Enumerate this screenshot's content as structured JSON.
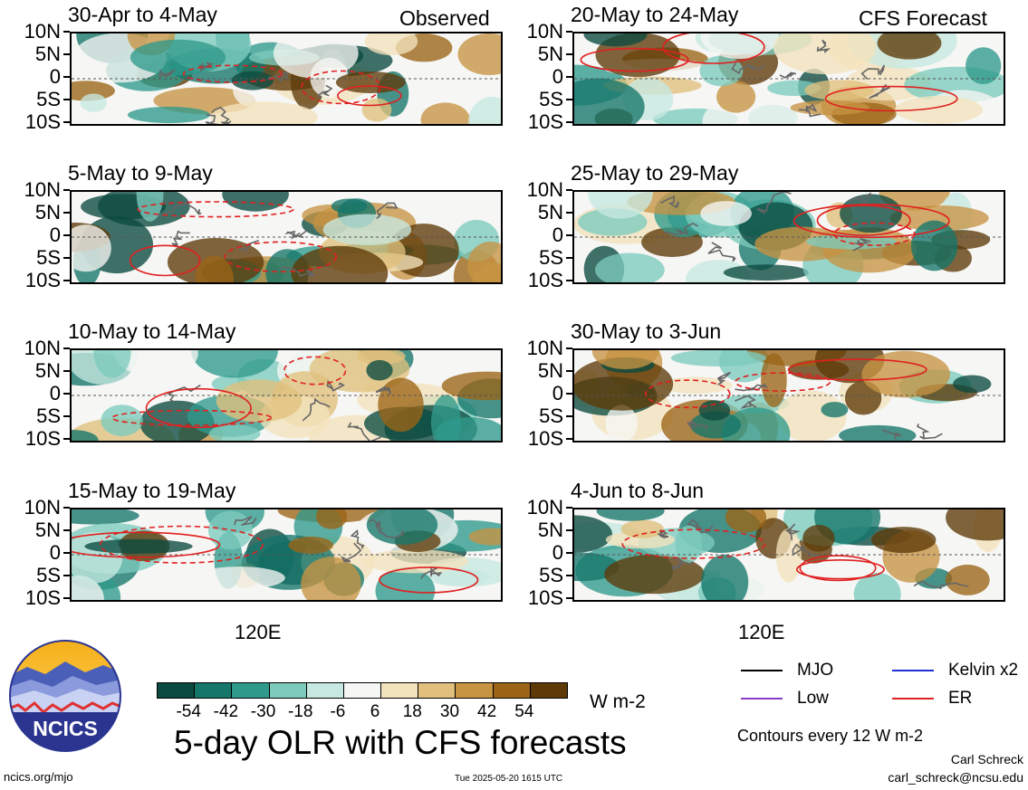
{
  "header": {
    "observed_label": "Observed",
    "forecast_label": "CFS Forecast"
  },
  "latitude_labels": [
    "10N",
    "5N",
    "0",
    "5S",
    "10S"
  ],
  "longitude_label": "120E",
  "panels_observed": [
    {
      "title": "30-Apr to 4-May"
    },
    {
      "title": "5-May to 9-May"
    },
    {
      "title": "10-May to 14-May"
    },
    {
      "title": "15-May to 19-May"
    }
  ],
  "panels_forecast": [
    {
      "title": "20-May to 24-May"
    },
    {
      "title": "25-May to 29-May"
    },
    {
      "title": "30-May to 3-Jun"
    },
    {
      "title": "4-Jun to 8-Jun"
    }
  ],
  "colorbar": {
    "colors": [
      "#0b4a40",
      "#15766a",
      "#2f9a8c",
      "#7ccabc",
      "#c6e8e0",
      "#f6f6f4",
      "#f3e3bc",
      "#e0c07c",
      "#c79442",
      "#9b6416",
      "#5e3a08"
    ],
    "labels": [
      "-54",
      "-42",
      "-30",
      "-18",
      "-6",
      "6",
      "18",
      "30",
      "42",
      "54"
    ],
    "units": "W m-2"
  },
  "legend": {
    "items": [
      {
        "label": "MJO",
        "color": "#000000"
      },
      {
        "label": "Kelvin x2",
        "color": "#1f2fd0"
      },
      {
        "label": "Low",
        "color": "#8a3cc9"
      },
      {
        "label": "ER",
        "color": "#e02020"
      }
    ],
    "contour_note": "Contours every 12 W m-2"
  },
  "main_title": "5-day OLR with CFS forecasts",
  "logo": {
    "text": "NCICS"
  },
  "footer": {
    "left": "ncics.org/mjo",
    "center": "Tue 2025-05-20 1615 UTC",
    "author": "Carl Schreck",
    "email": "carl_schreck@ncsu.edu"
  }
}
